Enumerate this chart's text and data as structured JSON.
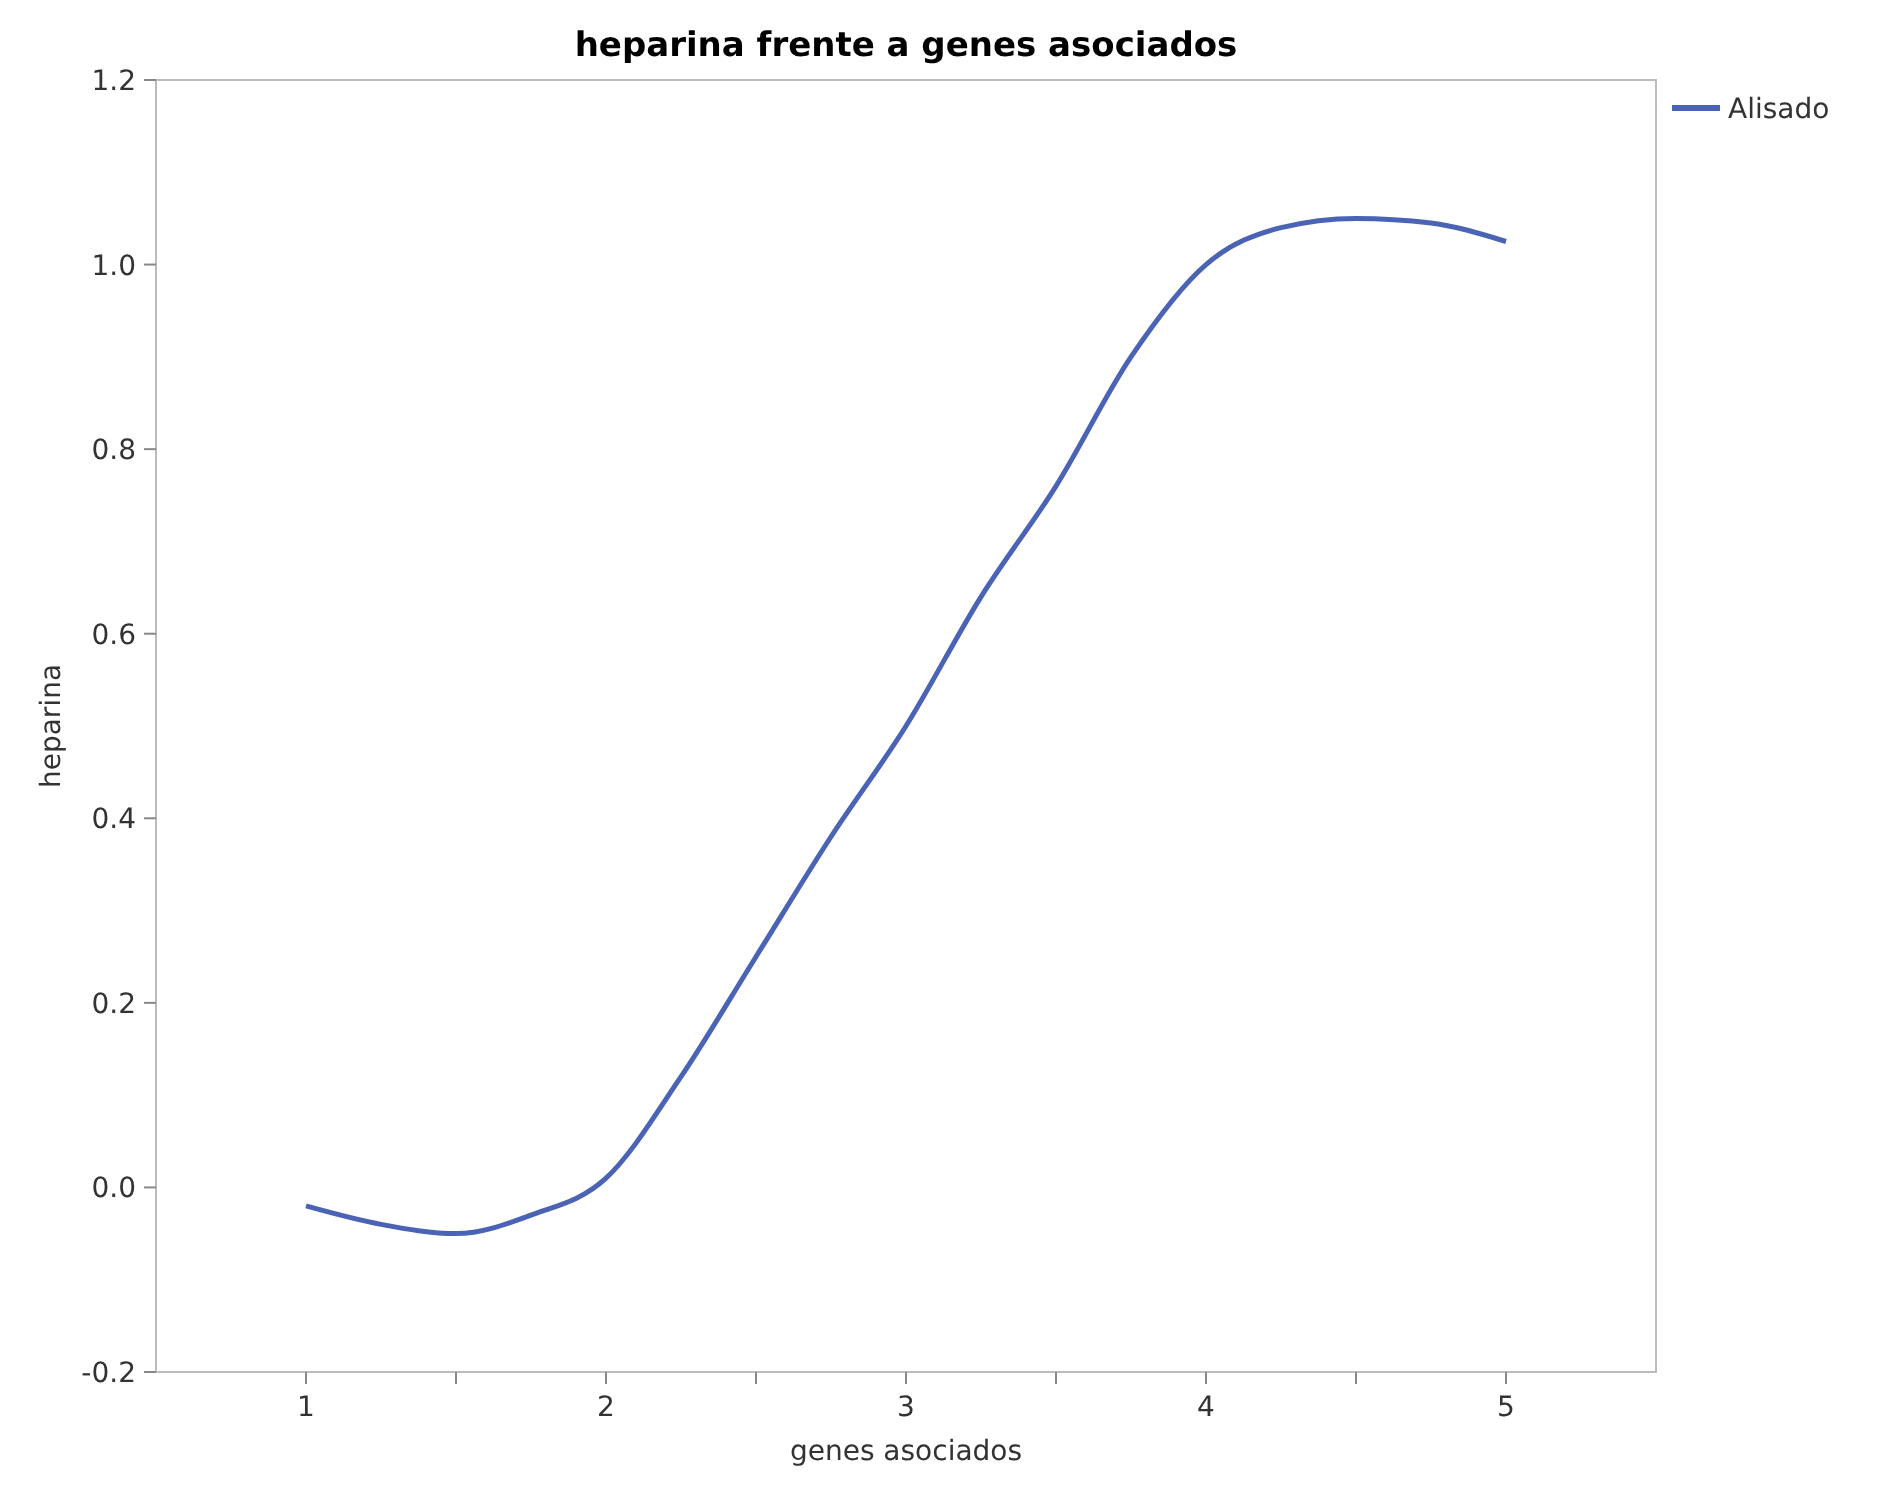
{
  "chart_data": {
    "type": "line",
    "title": "heparina frente a genes asociados",
    "xlabel": "genes asociados",
    "ylabel": "heparina",
    "x": [
      1,
      1.25,
      1.5,
      1.75,
      2,
      2.25,
      2.5,
      2.75,
      3,
      3.25,
      3.5,
      3.75,
      4,
      4.25,
      4.5,
      4.75,
      5
    ],
    "series": [
      {
        "name": "Alisado",
        "color": "#4a63b5",
        "values": [
          -0.02,
          -0.04,
          -0.05,
          -0.03,
          0.01,
          0.12,
          0.25,
          0.38,
          0.5,
          0.64,
          0.76,
          0.9,
          1.0,
          1.04,
          1.05,
          1.045,
          1.025
        ]
      }
    ],
    "xlim": [
      0.5,
      5.5
    ],
    "xticks": [
      1,
      2,
      3,
      4,
      5,
      {
        "value": 1.5,
        "label": null
      },
      {
        "value": 2.5,
        "label": null
      },
      {
        "value": 3.5,
        "label": null
      },
      {
        "value": 4.5,
        "label": null
      }
    ],
    "ylim": [
      -0.2,
      1.2
    ],
    "yticks": [
      -0.2,
      {
        "value": 0,
        "label": "0.0"
      },
      0.2,
      0.4,
      0.6,
      0.8,
      {
        "value": 1,
        "label": "1.0"
      },
      1.2
    ],
    "legend": "top right",
    "marker": "none",
    "line_style": "solid",
    "grid": false
  }
}
